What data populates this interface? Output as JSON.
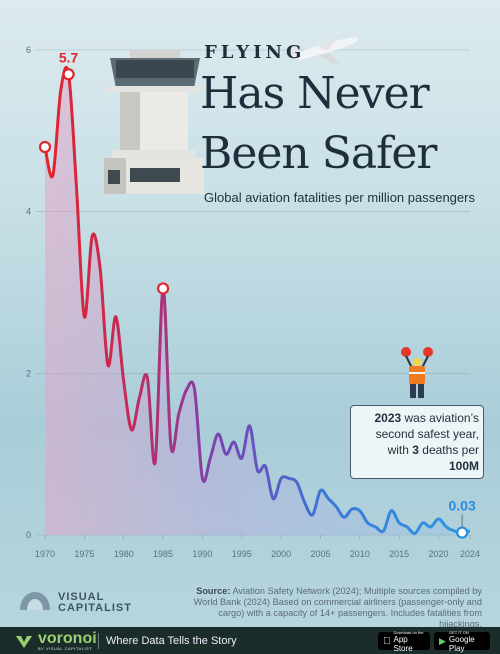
{
  "header": {
    "kicker": "FLYING",
    "title_line1": "Has Never",
    "title_line2": "Been Safer",
    "subtitle": "Global aviation fatalities per million passengers"
  },
  "chart_data": {
    "type": "area",
    "title": "Flying Has Never Been Safer",
    "subtitle": "Global aviation fatalities per million passengers",
    "xlabel": "",
    "ylabel": "",
    "xlim": [
      1970,
      2024
    ],
    "ylim": [
      0,
      6
    ],
    "x_ticks": [
      "1970",
      "1975",
      "1980",
      "1985",
      "1990",
      "1995",
      "2000",
      "2005",
      "2010",
      "2015",
      "2020",
      "2024"
    ],
    "y_ticks": [
      "0",
      "2",
      "4",
      "6"
    ],
    "grid": true,
    "series": [
      {
        "name": "",
        "x": [
          1970,
          1971,
          1972,
          1973,
          1974,
          1975,
          1976,
          1977,
          1978,
          1979,
          1980,
          1981,
          1982,
          1983,
          1984,
          1985,
          1986,
          1987,
          1988,
          1989,
          1990,
          1991,
          1992,
          1993,
          1994,
          1995,
          1996,
          1997,
          1998,
          1999,
          2000,
          2001,
          2002,
          2003,
          2004,
          2005,
          2006,
          2007,
          2008,
          2009,
          2010,
          2011,
          2012,
          2013,
          2014,
          2015,
          2016,
          2017,
          2018,
          2019,
          2020,
          2021,
          2022,
          2023,
          2024
        ],
        "values": [
          4.8,
          4.45,
          5.5,
          5.7,
          4.3,
          2.7,
          3.7,
          3.3,
          2.1,
          2.7,
          1.9,
          1.3,
          1.7,
          1.95,
          0.9,
          3.05,
          1.1,
          1.5,
          1.8,
          1.8,
          0.7,
          0.95,
          1.25,
          1.0,
          1.15,
          0.95,
          1.35,
          0.8,
          0.85,
          0.45,
          0.7,
          0.7,
          0.65,
          0.4,
          0.25,
          0.55,
          0.45,
          0.35,
          0.22,
          0.32,
          0.3,
          0.15,
          0.1,
          0.05,
          0.3,
          0.15,
          0.1,
          0.02,
          0.15,
          0.1,
          0.2,
          0.1,
          0.05,
          0.03,
          0.05
        ]
      }
    ],
    "highlighted_points": [
      {
        "x": 1970,
        "y": 4.8,
        "label": ""
      },
      {
        "x": 1973,
        "y": 5.7,
        "label": "5.7"
      },
      {
        "x": 1985,
        "y": 3.05,
        "label": ""
      },
      {
        "x": 2023,
        "y": 0.03,
        "label": "0.03"
      }
    ],
    "colors": {
      "early": "#e0262f",
      "mid": "#8a3fa5",
      "late": "#2a8be0"
    }
  },
  "annotation": {
    "line1_bold": "2023",
    "line1_rest": " was aviation’s",
    "line2": "second safest year,",
    "line3_pre": "with ",
    "line3_bold1": "3",
    "line3_mid": " deaths per ",
    "line3_bold2": "100M"
  },
  "source": {
    "label": "Source:",
    "text": " Aviation Safety Network (2024); Multiple sources compiled by World Bank (2024) Based on commercial airliners (passenger-only and cargo) with a capacity of 14+ passengers. Includes fatalities from hijackings."
  },
  "brand": {
    "vc_line1": "VISUAL",
    "vc_line2": "CAPITALIST"
  },
  "footer": {
    "name": "voronoi",
    "sub": "BY VISUAL CAPITALIST",
    "tagline": "Where Data Tells the Story",
    "appstore_small": "Download on the",
    "appstore_big": "App Store",
    "googleplay_small": "GET IT ON",
    "googleplay_big": "Google Play"
  }
}
